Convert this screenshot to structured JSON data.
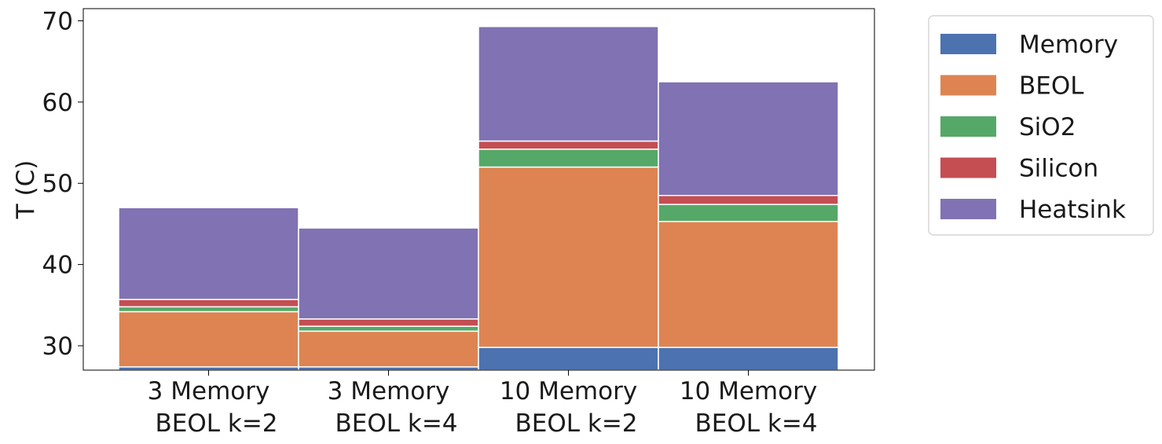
{
  "chart_data": {
    "type": "bar",
    "stacked": true,
    "title": "",
    "xlabel": "",
    "ylabel": "T (C)",
    "ylim": [
      27,
      71.5
    ],
    "yticks": [
      30,
      40,
      50,
      60,
      70
    ],
    "categories": [
      [
        "3 Memory",
        "BEOL k=2"
      ],
      [
        "3 Memory",
        "BEOL k=4"
      ],
      [
        "10 Memory",
        "BEOL k=2"
      ],
      [
        "10 Memory",
        "BEOL k=4"
      ]
    ],
    "legend_position": "outside-top-right",
    "series": [
      {
        "name": "Memory",
        "color": "#4c72b0",
        "tops": [
          27.4,
          27.4,
          29.8,
          29.8
        ]
      },
      {
        "name": "BEOL",
        "color": "#dd8452",
        "tops": [
          34.2,
          31.8,
          52.0,
          45.3
        ]
      },
      {
        "name": "SiO2",
        "color": "#55a868",
        "tops": [
          34.8,
          32.4,
          54.2,
          47.4
        ]
      },
      {
        "name": "Silicon",
        "color": "#c44e52",
        "tops": [
          35.7,
          33.3,
          55.2,
          48.5
        ]
      },
      {
        "name": "Heatsink",
        "color": "#8172b3",
        "tops": [
          47.0,
          44.5,
          69.3,
          62.5
        ]
      }
    ]
  }
}
